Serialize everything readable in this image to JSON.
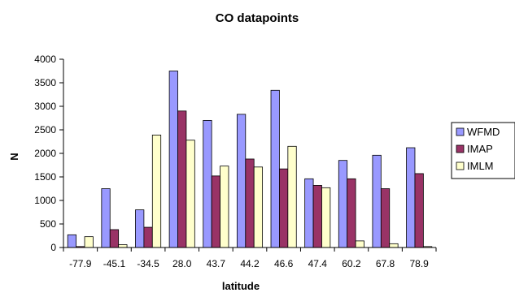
{
  "chart_data": {
    "type": "bar",
    "title": "CO datapoints",
    "xlabel": "latitude",
    "ylabel": "N",
    "ylim": [
      0,
      4000
    ],
    "yticks": [
      0,
      500,
      1000,
      1500,
      2000,
      2500,
      3000,
      3500,
      4000
    ],
    "grid": false,
    "legend_position": "right",
    "categories": [
      "-77.9",
      "-45.1",
      "-34.5",
      "28.0",
      "43.7",
      "44.2",
      "46.6",
      "47.4",
      "60.2",
      "67.8",
      "78.9"
    ],
    "series": [
      {
        "name": "WFMD",
        "color": "#9999ff",
        "values": [
          270,
          1250,
          800,
          3750,
          2700,
          2830,
          3340,
          1460,
          1850,
          1960,
          2120
        ]
      },
      {
        "name": "IMAP",
        "color": "#993366",
        "values": [
          20,
          380,
          430,
          2900,
          1520,
          1880,
          1670,
          1320,
          1460,
          1250,
          1570
        ]
      },
      {
        "name": "IMLM",
        "color": "#ffffcc",
        "values": [
          230,
          60,
          2390,
          2280,
          1730,
          1710,
          2150,
          1270,
          140,
          80,
          20
        ]
      }
    ]
  }
}
